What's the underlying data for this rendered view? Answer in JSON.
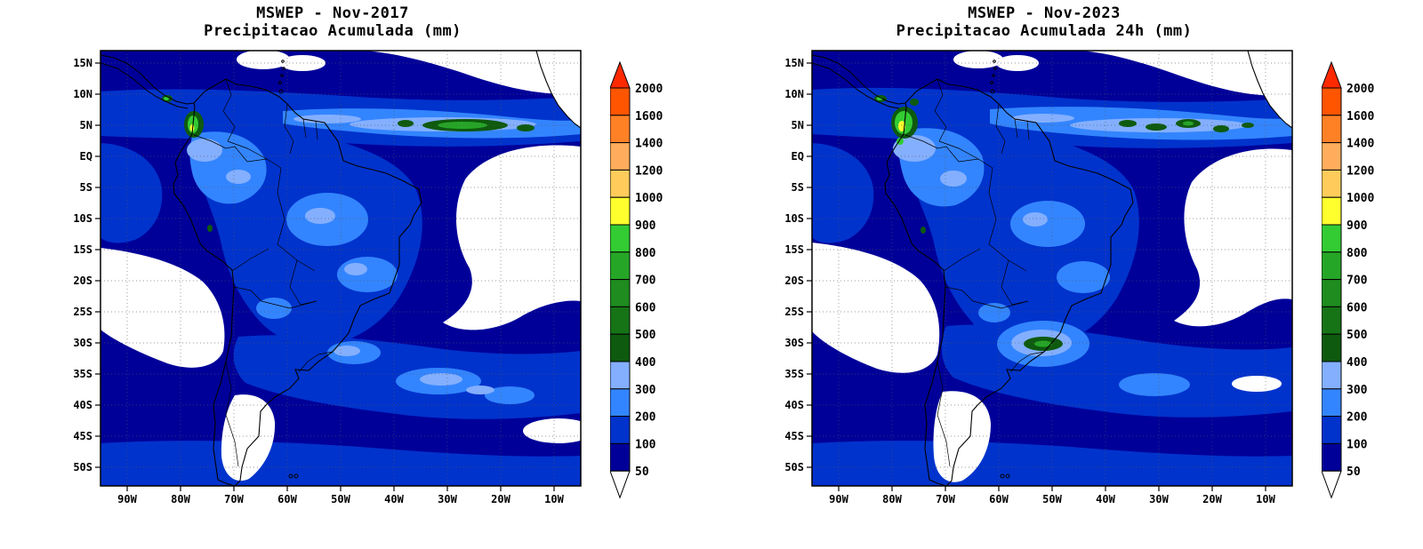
{
  "figure": {
    "background": "#FFFFFF",
    "description": "Two-panel comparison of MSWEP accumulated precipitation over South America: November 2017 vs November 2023"
  },
  "panels": [
    {
      "title": "MSWEP - Nov-2017",
      "subtitle": "Precipitacao Acumulada (mm)",
      "lat_ticks": [
        "15N",
        "10N",
        "5N",
        "EQ",
        "5S",
        "10S",
        "15S",
        "20S",
        "25S",
        "30S",
        "35S",
        "40S",
        "45S",
        "50S"
      ],
      "lon_ticks": [
        "90W",
        "80W",
        "70W",
        "60W",
        "50W",
        "40W",
        "30W",
        "20W",
        "10W"
      ]
    },
    {
      "title": "MSWEP - Nov-2023",
      "subtitle": "Precipitacao Acumulada 24h (mm)",
      "lat_ticks": [
        "15N",
        "10N",
        "5N",
        "EQ",
        "5S",
        "10S",
        "15S",
        "20S",
        "25S",
        "30S",
        "35S",
        "40S",
        "45S",
        "50S"
      ],
      "lon_ticks": [
        "90W",
        "80W",
        "70W",
        "60W",
        "50W",
        "40W",
        "30W",
        "20W",
        "10W"
      ]
    }
  ],
  "colorbar": {
    "labels": [
      "2000",
      "1600",
      "1400",
      "1200",
      "1000",
      "900",
      "800",
      "700",
      "600",
      "500",
      "400",
      "300",
      "200",
      "100",
      "50"
    ],
    "segments": [
      "#FF5500",
      "#FF8126",
      "#FFAD5C",
      "#FFCC5C",
      "#FFFF2E",
      "#33CC33",
      "#26A626",
      "#1E8C1E",
      "#167316",
      "#0E5A0E",
      "#84AFFF",
      "#3385FF",
      "#0033CC",
      "#000099"
    ],
    "arrow_top": "#FF2900",
    "arrow_bottom": "#FFFFFF",
    "bins": [
      {
        "range": "<50",
        "color": "#FFFFFF"
      },
      {
        "range": "50-100",
        "color": "#000099"
      },
      {
        "range": "100-200",
        "color": "#0033CC"
      },
      {
        "range": "200-300",
        "color": "#3385FF"
      },
      {
        "range": "300-400",
        "color": "#84AFFF"
      },
      {
        "range": "400-500",
        "color": "#0E5A0E"
      },
      {
        "range": "500-600",
        "color": "#167316"
      },
      {
        "range": "600-700",
        "color": "#1E8C1E"
      },
      {
        "range": "700-800",
        "color": "#26A626"
      },
      {
        "range": "800-900",
        "color": "#33CC33"
      },
      {
        "range": "900-1000",
        "color": "#FFFF2E"
      },
      {
        "range": "1000-1200",
        "color": "#FFCC5C"
      },
      {
        "range": "1200-1400",
        "color": "#FFAD5C"
      },
      {
        "range": "1400-1600",
        "color": "#FF8126"
      },
      {
        "range": "1600-2000",
        "color": "#FF5500"
      },
      {
        "range": ">2000",
        "color": "#FF2900"
      }
    ]
  },
  "chart_data": [
    {
      "type": "heatmap",
      "title": "MSWEP - Nov-2017",
      "subtitle": "Precipitacao Acumulada (mm)",
      "variable": "accumulated precipitation",
      "units": "mm",
      "region": "South America, tropical Atlantic and southeast Pacific",
      "x_ticks": [
        "90W",
        "80W",
        "70W",
        "60W",
        "50W",
        "40W",
        "30W",
        "20W",
        "10W"
      ],
      "y_ticks": [
        "15N",
        "10N",
        "5N",
        "EQ",
        "5S",
        "10S",
        "15S",
        "20S",
        "25S",
        "30S",
        "35S",
        "40S",
        "45S",
        "50S"
      ],
      "contour_levels_mm": [
        50,
        100,
        200,
        300,
        400,
        500,
        600,
        700,
        800,
        900,
        1000,
        1200,
        1400,
        1600,
        2000
      ],
      "palette_ref": "colorbar.bins",
      "legend_position": "right",
      "grid": "dotted lat-lon grid",
      "notable_features": [
        "ITCZ band of 200-400 mm near 5N across the tropical Atlantic with an elongated 400-700 mm green core around 25-35W",
        "Local maximum above 800-1000 mm (green/yellow) on the Pacific coast of Colombia near 77W,5N",
        "Widespread 100-300 mm over the Amazon basin and central Brazil",
        "Below 50 mm (white) over the subtropical South Atlantic, the southeast Pacific off Chile, and Patagonia",
        "100-300 mm band across the South Atlantic between roughly 28S and 40S"
      ]
    },
    {
      "type": "heatmap",
      "title": "MSWEP - Nov-2023",
      "subtitle": "Precipitacao Acumulada 24h (mm)",
      "variable": "accumulated precipitation",
      "units": "mm",
      "region": "South America, tropical Atlantic and southeast Pacific",
      "x_ticks": [
        "90W",
        "80W",
        "70W",
        "60W",
        "50W",
        "40W",
        "30W",
        "20W",
        "10W"
      ],
      "y_ticks": [
        "15N",
        "10N",
        "5N",
        "EQ",
        "5S",
        "10S",
        "15S",
        "20S",
        "25S",
        "30S",
        "35S",
        "40S",
        "45S",
        "50S"
      ],
      "contour_levels_mm": [
        50,
        100,
        200,
        300,
        400,
        500,
        600,
        700,
        800,
        900,
        1000,
        1200,
        1400,
        1600,
        2000
      ],
      "palette_ref": "colorbar.bins",
      "legend_position": "right",
      "grid": "dotted lat-lon grid",
      "notable_features": [
        "Strong 800-1000 mm (bright green with yellow) maximum on the Pacific coast of Colombia near 77W,5N",
        "Scattered 400-700 mm dark-green cores embedded in the 200-400 mm Atlantic ITCZ band near 5N",
        "400-700 mm maximum over southern Brazil (Rio Grande do Sul, near 53W,30S) surrounded by 200-400 mm",
        "Widespread 100-300 mm over the Amazon basin and central Brazil",
        "Below 50 mm (white) over the subtropical South Atlantic, the southeast Pacific off Chile, and Patagonia"
      ]
    }
  ]
}
